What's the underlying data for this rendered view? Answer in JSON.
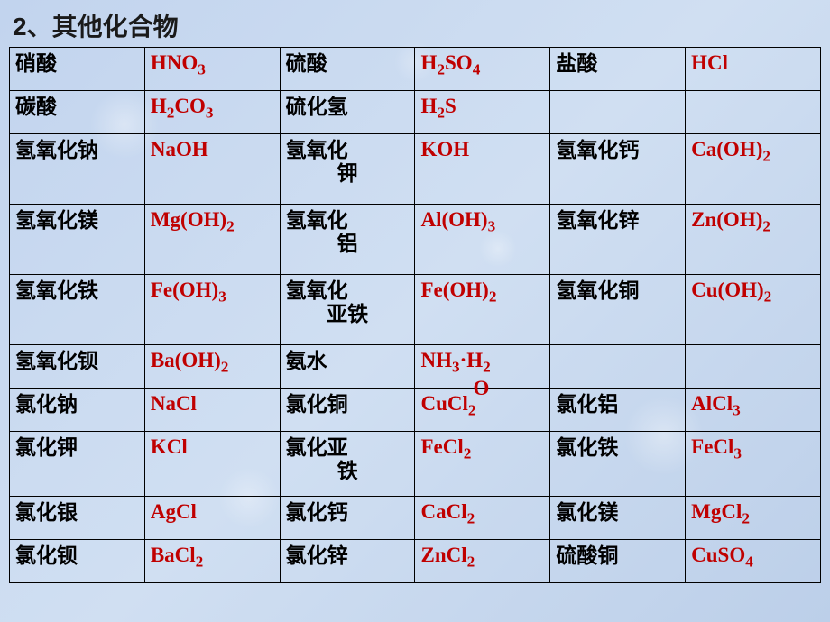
{
  "title": "2、其他化合物",
  "table": {
    "formula_color": "#c00000",
    "name_color": "#000000",
    "border_color": "#000000",
    "background_color": "#c9d9f0",
    "rows": [
      [
        {
          "name": "硝酸",
          "formula": "HNO",
          "sub": "3"
        },
        {
          "name": "硫酸",
          "formula": "H",
          "sub": "2",
          "tail": "SO",
          "sub2": "4"
        },
        {
          "name": "盐酸",
          "formula": "HCl"
        }
      ],
      [
        {
          "name": "碳酸",
          "formula": "H",
          "sub": "2",
          "tail": "CO",
          "sub2": "3"
        },
        {
          "name": "硫化氢",
          "formula": "H",
          "sub": "2",
          "tail": "S"
        },
        {
          "name": "",
          "formula": ""
        }
      ],
      [
        {
          "name": "氢氧化钠",
          "formula": "NaOH"
        },
        {
          "name_l1": "氢氧化",
          "name_l2": "钾",
          "formula": "KOH"
        },
        {
          "name": "氢氧化钙",
          "formula": "Ca(OH)",
          "sub": "2"
        }
      ],
      [
        {
          "name": "氢氧化镁",
          "formula": "Mg(OH)",
          "sub": "2"
        },
        {
          "name_l1": "氢氧化",
          "name_l2": "铝",
          "formula": "Al(OH)",
          "sub": "3"
        },
        {
          "name": "氢氧化锌",
          "formula": "Zn(OH)",
          "sub": "2"
        }
      ],
      [
        {
          "name": "氢氧化铁",
          "formula": "Fe(OH)",
          "sub": "3"
        },
        {
          "name_l1": "氢氧化",
          "name_l2": "亚铁",
          "formula": "Fe(OH)",
          "sub": "2"
        },
        {
          "name": "氢氧化铜",
          "formula": "Cu(OH)",
          "sub": "2"
        }
      ],
      [
        {
          "name": "氢氧化钡",
          "formula": "Ba(OH)",
          "sub": "2"
        },
        {
          "name": "氨水",
          "formula_raw": "NH3·H2O",
          "overlap": true
        },
        {
          "name": "",
          "formula": ""
        }
      ],
      [
        {
          "name": "氯化钠",
          "formula": "NaCl"
        },
        {
          "name": "氯化铜",
          "formula": "CuCl",
          "sub": "2"
        },
        {
          "name": "氯化铝",
          "formula": "AlCl",
          "sub": "3"
        }
      ],
      [
        {
          "name": "氯化钾",
          "formula": "KCl"
        },
        {
          "name_l1": "氯化亚",
          "name_l2": "铁",
          "formula": "FeCl",
          "sub": "2"
        },
        {
          "name": "氯化铁",
          "formula": "FeCl",
          "sub": "3"
        }
      ],
      [
        {
          "name": "氯化银",
          "formula": "AgCl"
        },
        {
          "name": "氯化钙",
          "formula": "CaCl",
          "sub": "2"
        },
        {
          "name": "氯化镁",
          "formula": "MgCl",
          "sub": "2"
        }
      ],
      [
        {
          "name": "氯化钡",
          "formula": "BaCl",
          "sub": "2"
        },
        {
          "name": "氯化锌",
          "formula": "ZnCl",
          "sub": "2"
        },
        {
          "name": "硫酸铜",
          "formula": "CuSO",
          "sub": "4"
        }
      ]
    ]
  }
}
